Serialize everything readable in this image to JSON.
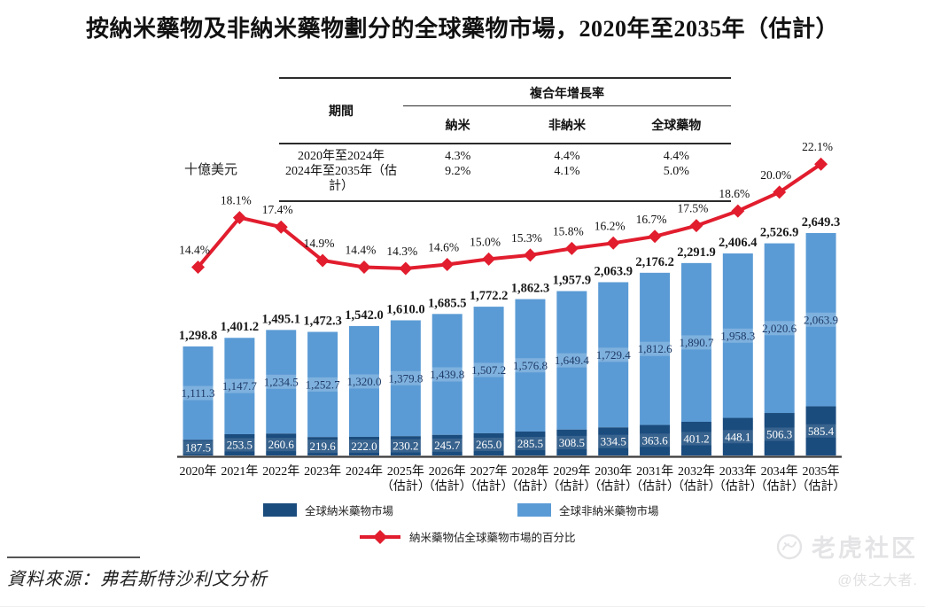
{
  "title": "按納米藥物及非納米藥物劃分的全球藥物市場，2020年至2035年（估計）",
  "unit_label": "十億美元",
  "cagr_table": {
    "period_header": "期間",
    "group_header": "複合年增長率",
    "columns": [
      "納米",
      "非納米",
      "全球藥物"
    ],
    "rows": [
      {
        "period": "2020年至2024年",
        "values": [
          "4.3%",
          "4.4%",
          "4.4%"
        ]
      },
      {
        "period": "2024年至2035年（估計）",
        "values": [
          "9.2%",
          "4.1%",
          "5.0%"
        ]
      }
    ]
  },
  "chart_data": {
    "type": "bar",
    "stacked": true,
    "grid": false,
    "legend_position": "bottom",
    "xlabel": "",
    "ylabel": "十億美元",
    "categories": [
      "2020年",
      "2021年",
      "2022年",
      "2023年",
      "2024年",
      "2025年（估計）",
      "2026年（估計）",
      "2027年（估計）",
      "2028年（估計）",
      "2029年（估計）",
      "2030年（估計）",
      "2031年（估計）",
      "2032年（估計）",
      "2033年（估計）",
      "2034年（估計）",
      "2035年（估計）"
    ],
    "series": [
      {
        "name": "全球納米藥物市場",
        "color": "#1B4C7E",
        "values": [
          187.5,
          253.5,
          260.6,
          219.6,
          222.0,
          230.2,
          245.7,
          265.0,
          285.5,
          308.5,
          334.5,
          363.6,
          401.2,
          448.1,
          506.3,
          585.4
        ]
      },
      {
        "name": "全球非納米藥物市場",
        "color": "#5B9BD5",
        "values": [
          1111.3,
          1147.7,
          1234.5,
          1252.7,
          1320.0,
          1379.8,
          1439.8,
          1507.2,
          1576.8,
          1649.4,
          1729.4,
          1812.6,
          1890.7,
          1958.3,
          2020.6,
          2063.9
        ]
      }
    ],
    "totals": [
      1298.8,
      1401.2,
      1495.1,
      1472.3,
      1542.0,
      1610.0,
      1685.5,
      1772.2,
      1862.3,
      1957.9,
      2063.9,
      2176.2,
      2291.9,
      2406.4,
      2526.9,
      2649.3
    ],
    "line_series": {
      "name": "納米藥物佔全球藥物市場的百分比",
      "color": "#E11D2E",
      "unit": "%",
      "values": [
        14.4,
        18.1,
        17.4,
        14.9,
        14.4,
        14.3,
        14.6,
        15.0,
        15.3,
        15.8,
        16.2,
        16.7,
        17.5,
        18.6,
        20.0,
        22.1
      ]
    }
  },
  "footer": {
    "source": "資料來源：弗若斯特沙利文分析"
  },
  "watermark": {
    "brand": "老虎社区",
    "handle": "@侠之大者."
  }
}
